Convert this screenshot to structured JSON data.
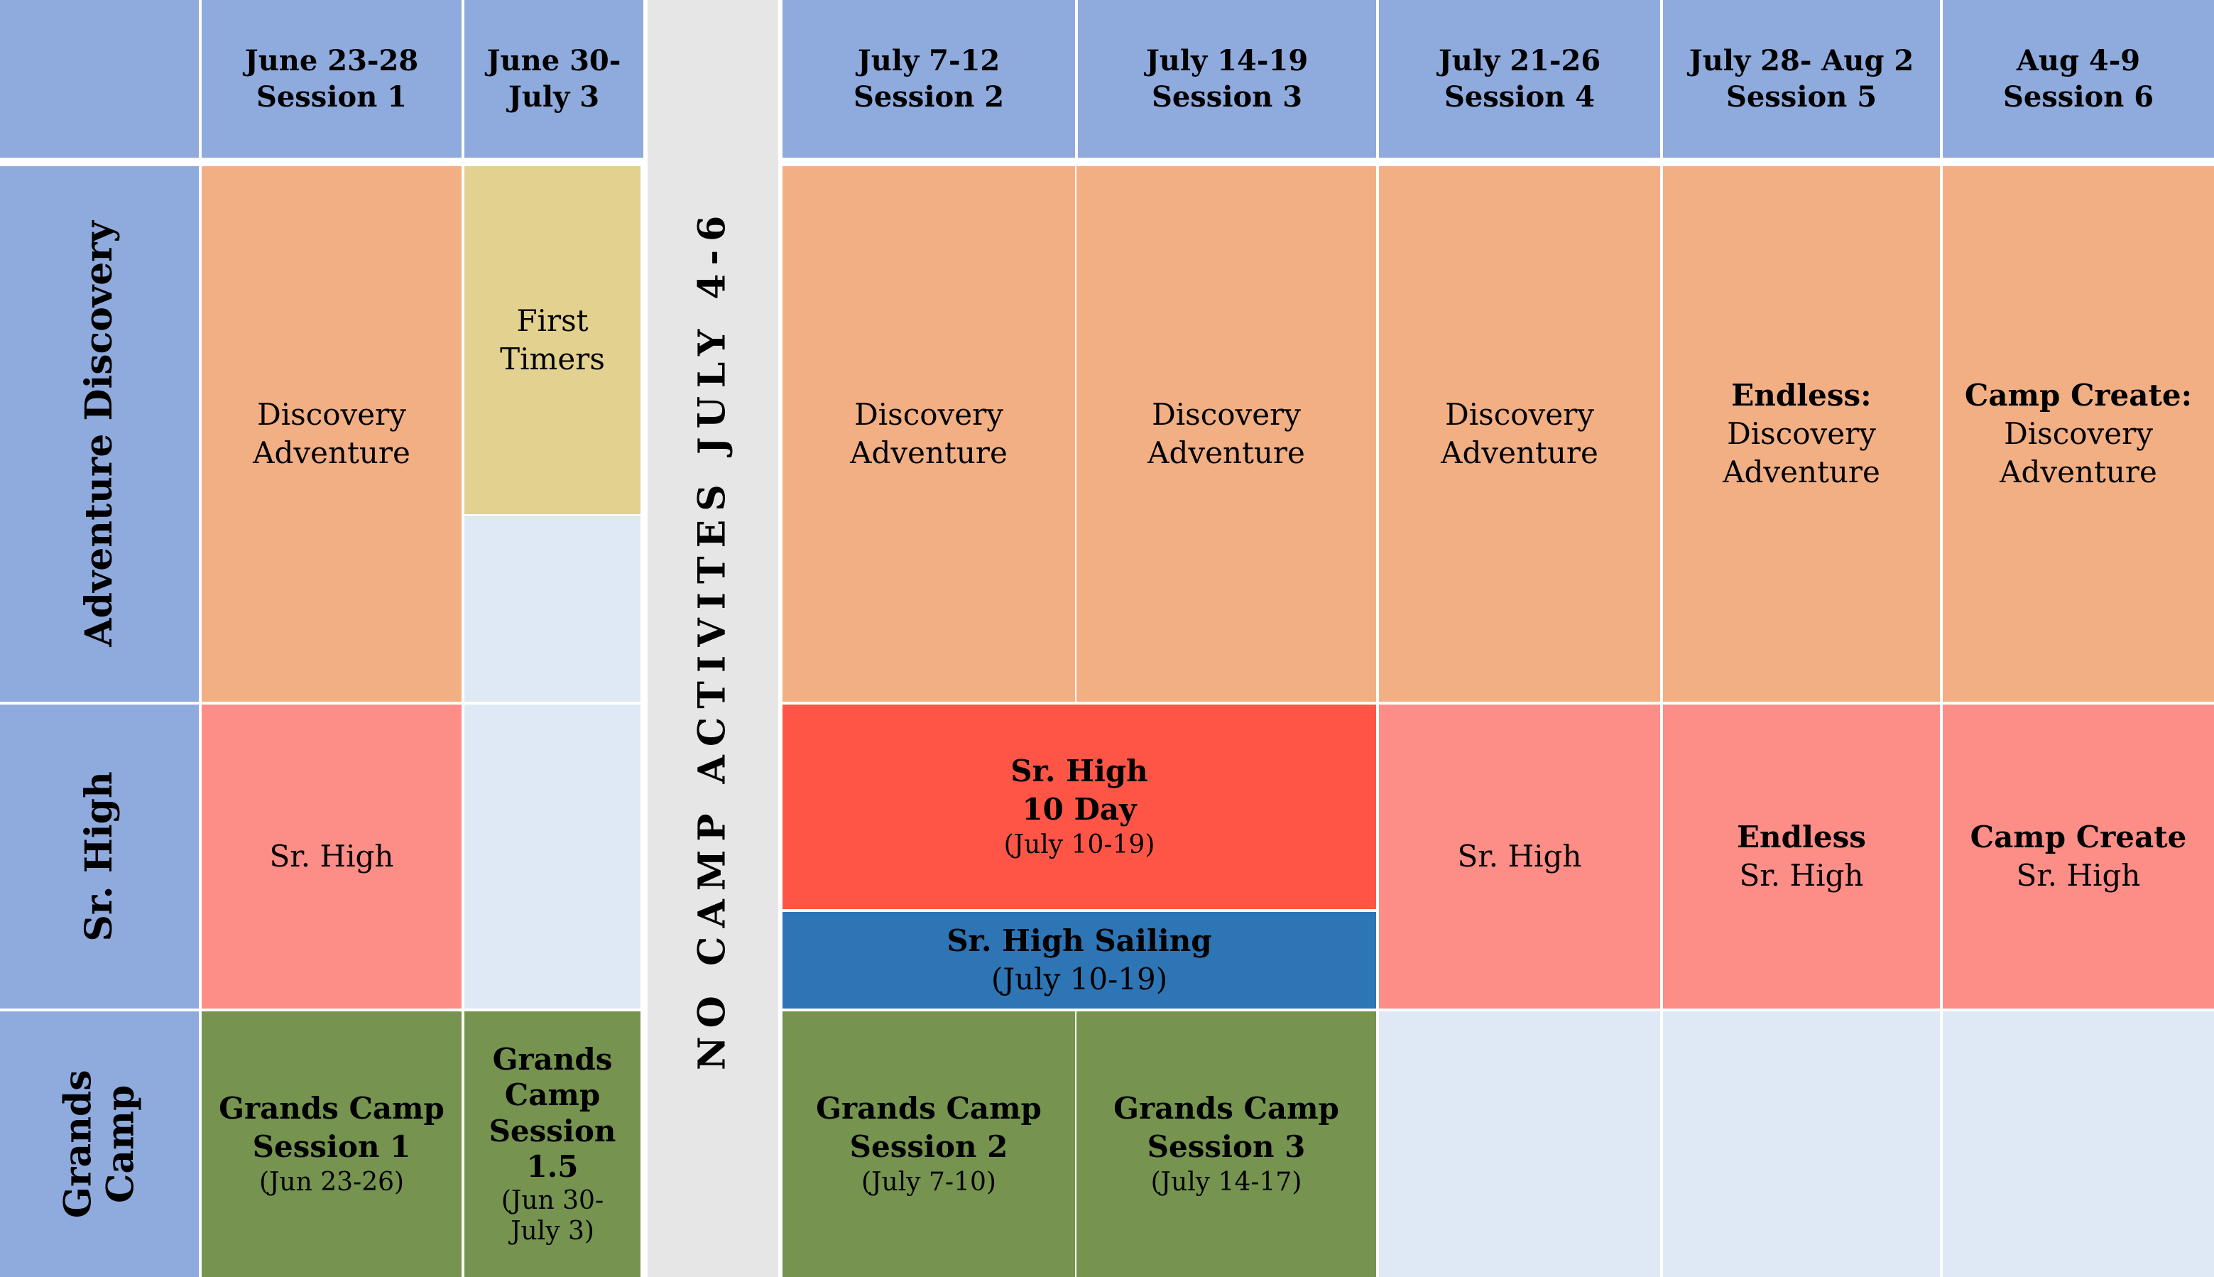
{
  "header": {
    "columns": [
      {
        "line1": "June 23-28",
        "line2": "Session 1"
      },
      {
        "line1": "June 30-",
        "line2": "July 3"
      },
      {
        "line1": "July 7-12",
        "line2": "Session 2"
      },
      {
        "line1": "July 14-19",
        "line2": "Session 3"
      },
      {
        "line1": "July 21-26",
        "line2": "Session 4"
      },
      {
        "line1": "July 28- Aug 2",
        "line2": "Session 5"
      },
      {
        "line1": "Aug 4-9",
        "line2": "Session 6"
      }
    ]
  },
  "banner": "NO CAMP ACTIVITES JULY 4-6",
  "rows": {
    "adventure": {
      "label": "Adventure Discovery",
      "s1": [
        "Discovery",
        "Adventure"
      ],
      "s15": [
        "First",
        "Timers"
      ],
      "s2": [
        "Discovery",
        "Adventure"
      ],
      "s3": [
        "Discovery",
        "Adventure"
      ],
      "s4": [
        "Discovery",
        "Adventure"
      ],
      "s5": {
        "title": "Endless:",
        "lines": [
          "Discovery",
          "Adventure"
        ]
      },
      "s6": {
        "title": "Camp Create:",
        "lines": [
          "Discovery",
          "Adventure"
        ]
      }
    },
    "srhigh": {
      "label": "Sr. High",
      "s1": "Sr. High",
      "tenday": {
        "line1": "Sr. High",
        "line2": "10 Day",
        "dates": "(July 10-19)"
      },
      "sailing": {
        "title": "Sr. High Sailing",
        "dates": "(July 10-19)"
      },
      "s4": "Sr. High",
      "s5": {
        "title": "Endless",
        "sub": "Sr. High"
      },
      "s6": {
        "title": "Camp Create",
        "sub": "Sr. High"
      }
    },
    "grands": {
      "label": [
        "Grands",
        "Camp"
      ],
      "s1": {
        "lines": [
          "Grands Camp",
          "Session 1"
        ],
        "dates": "(Jun 23-26)"
      },
      "s15": {
        "lines": [
          "Grands",
          "Camp",
          "Session",
          "1.5"
        ],
        "dates": [
          "(Jun 30-",
          "July 3)"
        ]
      },
      "s2": {
        "lines": [
          "Grands Camp",
          "Session 2"
        ],
        "dates": "(July 7-10)"
      },
      "s3": {
        "lines": [
          "Grands Camp",
          "Session 3"
        ],
        "dates": "(July 14-17)"
      }
    }
  },
  "colors": {
    "header": "#8FAADC",
    "discovery": "#F2AF84",
    "first_timers": "#E3D18F",
    "empty": "#DEE9F5",
    "sr_high": "#FC8E87",
    "sr_high_10day": "#FF5547",
    "sailing": "#2E75B6",
    "grands": "#76934F",
    "banner": "#E6E6E6"
  }
}
